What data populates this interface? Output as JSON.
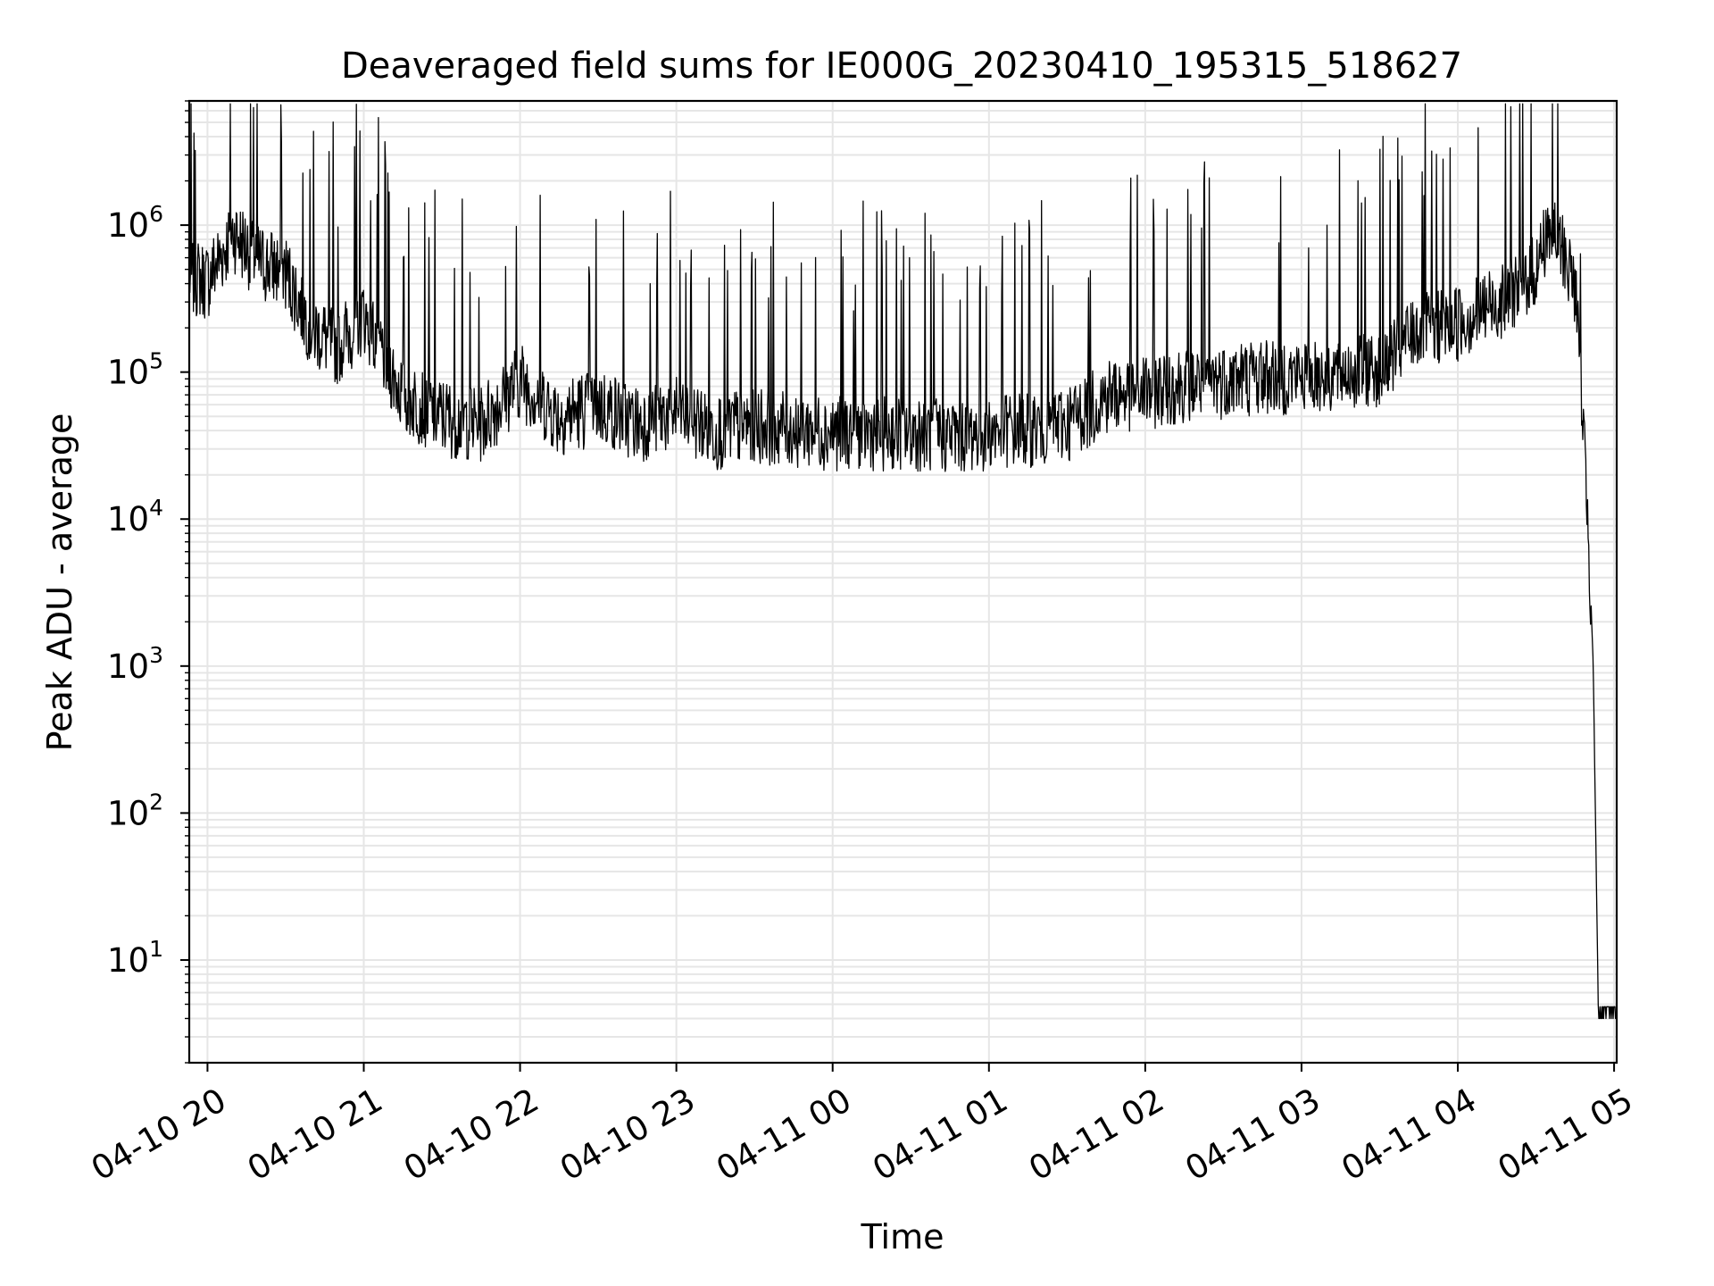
{
  "chart_data": {
    "type": "line",
    "title": "Deaveraged field sums for IE000G_20230410_195315_518627",
    "xlabel": "Time",
    "ylabel": "Peak ADU - average",
    "yscale": "log",
    "ylim": [
      2,
      7000000
    ],
    "xlim": [
      "04-10 19:53",
      "04-11 05:01"
    ],
    "grid": true,
    "line_color": "#000000",
    "x_ticks": [
      "04-10 20",
      "04-10 21",
      "04-10 22",
      "04-10 23",
      "04-11 00",
      "04-11 01",
      "04-11 02",
      "04-11 03",
      "04-11 04",
      "04-11 05"
    ],
    "y_ticks": [
      {
        "base": "10",
        "exp": "1",
        "value": 10
      },
      {
        "base": "10",
        "exp": "2",
        "value": 100
      },
      {
        "base": "10",
        "exp": "3",
        "value": 1000
      },
      {
        "base": "10",
        "exp": "4",
        "value": 10000
      },
      {
        "base": "10",
        "exp": "5",
        "value": 100000
      },
      {
        "base": "10",
        "exp": "6",
        "value": 1000000
      }
    ],
    "series": [
      {
        "x": [
          "04-10 19:53",
          "04-10 20:00",
          "04-10 20:10",
          "04-10 20:20",
          "04-10 20:30",
          "04-10 20:40",
          "04-10 20:50",
          "04-10 21:00",
          "04-10 21:15",
          "04-10 21:30",
          "04-10 21:45",
          "04-10 22:00",
          "04-10 22:15",
          "04-10 22:30",
          "04-10 22:45",
          "04-10 23:00",
          "04-10 23:15",
          "04-10 23:30",
          "04-10 23:45",
          "04-11 00:00",
          "04-11 00:15",
          "04-11 00:30",
          "04-11 00:45",
          "04-11 01:00",
          "04-11 01:15",
          "04-11 01:30",
          "04-11 01:45",
          "04-11 02:00",
          "04-11 02:15",
          "04-11 02:30",
          "04-11 02:45",
          "04-11 03:00",
          "04-11 03:15",
          "04-11 03:30",
          "04-11 03:45",
          "04-11 04:00",
          "04-11 04:15",
          "04-11 04:30",
          "04-11 04:35",
          "04-11 04:40",
          "04-11 04:45",
          "04-11 04:48",
          "04-11 04:50",
          "04-11 04:52",
          "04-11 04:54",
          "04-11 05:01"
        ],
        "values": [
          450000,
          420000,
          900000,
          560000,
          480000,
          200000,
          150000,
          250000,
          70000,
          50000,
          45000,
          90000,
          50000,
          60000,
          45000,
          55000,
          40000,
          45000,
          42000,
          40000,
          40000,
          40000,
          38000,
          40000,
          42000,
          45000,
          70000,
          75000,
          85000,
          90000,
          95000,
          95000,
          100000,
          110000,
          200000,
          220000,
          300000,
          500000,
          1000000,
          700000,
          400000,
          50000,
          10000,
          1000,
          4,
          4
        ]
      }
    ]
  }
}
